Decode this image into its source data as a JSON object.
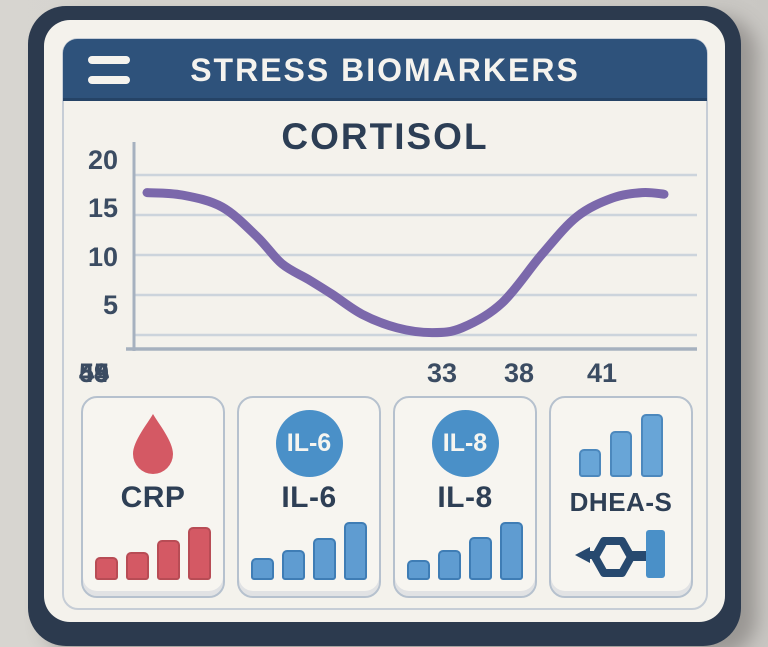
{
  "header": {
    "title": "STRESS BIOMARKERS"
  },
  "chart_data": {
    "type": "line",
    "title": "CORTISOL",
    "xlabel": "",
    "ylabel": "",
    "x_tick_labels": [
      "33",
      "38",
      "41",
      "44",
      "49",
      "45",
      "55"
    ],
    "y_tick_labels": [
      "20",
      "15",
      "10",
      "5"
    ],
    "y_tick_values": [
      20,
      15,
      10,
      5
    ],
    "ylim": [
      0,
      21.5
    ],
    "grid": "horizontal-only",
    "legend": "none",
    "line_color": "#7b68ab",
    "grid_color": "#ccd4dc",
    "axis_color": "#a6b1bf",
    "values_at_x_ticks": [
      17.5,
      13,
      7,
      2.5,
      0.5,
      5.5,
      17
    ],
    "curve_points": [
      [
        13,
        17.8
      ],
      [
        48,
        17.5
      ],
      [
        88,
        16.0
      ],
      [
        123,
        12.3
      ],
      [
        148,
        8.9
      ],
      [
        175,
        6.9
      ],
      [
        198,
        5.1
      ],
      [
        228,
        2.6
      ],
      [
        263,
        0.9
      ],
      [
        298,
        0.3
      ],
      [
        328,
        0.9
      ],
      [
        368,
        4.0
      ],
      [
        408,
        10.1
      ],
      [
        443,
        14.8
      ],
      [
        478,
        17.1
      ],
      [
        508,
        17.8
      ],
      [
        530,
        17.6
      ]
    ]
  },
  "cards": [
    {
      "label": "CRP",
      "icon": "blood-drop-icon",
      "accent": "#d45964",
      "bars": {
        "values": [
          23,
          28,
          40,
          53
        ],
        "fill": "#d45964",
        "stroke": "#b84c55"
      }
    },
    {
      "label": "IL-6",
      "badge_text": "IL-6",
      "badge_color": "#4a90c8",
      "bars": {
        "values": [
          22,
          30,
          42,
          58
        ],
        "fill": "#5f9cd1",
        "stroke": "#3f7db5"
      }
    },
    {
      "label": "IL-8",
      "badge_text": "IL-8",
      "badge_color": "#4a90c8",
      "bars": {
        "values": [
          20,
          30,
          43,
          58
        ],
        "fill": "#5f9cd1",
        "stroke": "#3f7db5"
      }
    },
    {
      "label": "DHEA-S",
      "icon": "molecule-icon",
      "top_bars": {
        "values": [
          28,
          46,
          63
        ],
        "fill": "#68a5d7",
        "stroke": "#4c88bd"
      },
      "molecule_colors": {
        "structure": "#27496f",
        "bar": "#4a90c8"
      }
    }
  ],
  "colors": {
    "page_bg": "#d3d1cc",
    "frame": "#2c3a4e",
    "panel": "#f4f2ec",
    "header": "#2e527b",
    "bezel_border": "#c6cdd6",
    "text_dark": "#2e3f55"
  }
}
